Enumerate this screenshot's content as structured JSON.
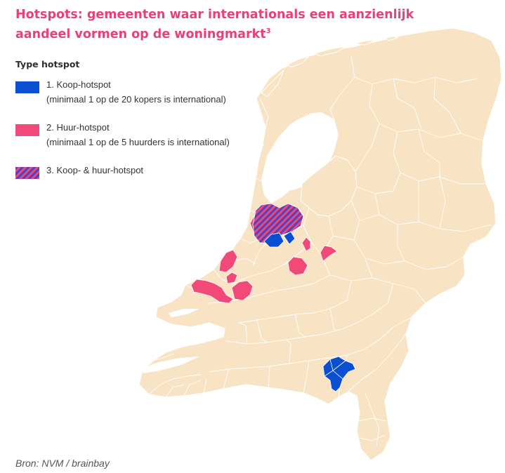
{
  "title": {
    "main": "Hotspots: gemeenten waar internationals een aanzienlijk aandeel vormen op de woningmarkt",
    "footnote_marker": "3"
  },
  "legend": {
    "title": "Type hotspot",
    "items": [
      {
        "label": "1. Koop-hotspot",
        "sublabel": "(minimaal 1 op de 20 kopers is international)",
        "color": "#0a4fd1"
      },
      {
        "label": "2. Huur-hotspot",
        "sublabel": "(minimaal 1 op de 5 huurders is international)",
        "color": "#f24a78"
      },
      {
        "label": "3. Koop- & huur-hotspot",
        "sublabel": "",
        "colors": [
          "#5b3fb5",
          "#e24b86"
        ]
      }
    ]
  },
  "map": {
    "land_color": "#f8e4c5",
    "border_color": "#ffffff",
    "water_color": "#ffffff"
  },
  "source": "Bron: NVM / brainbay"
}
